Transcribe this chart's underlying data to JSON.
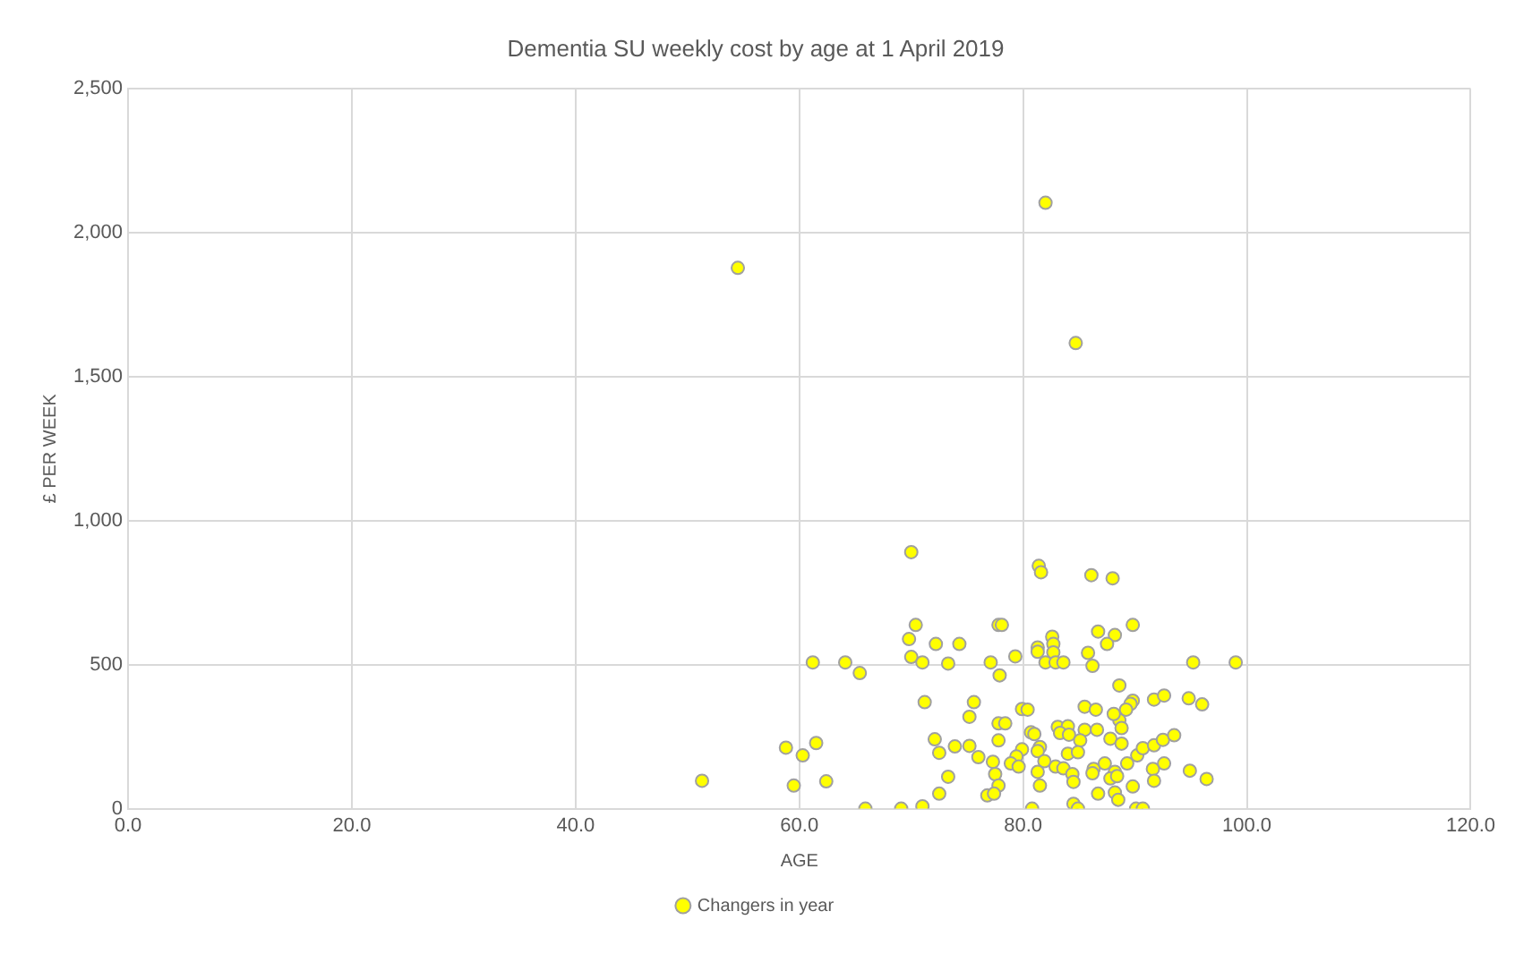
{
  "chart_data": {
    "type": "scatter",
    "title": "Dementia SU weekly cost by age at 1 April 2019",
    "xlabel": "AGE",
    "ylabel": "£ PER WEEK",
    "xlim": [
      0,
      120
    ],
    "xticks": [
      {
        "value": 0,
        "label": "0.0"
      },
      {
        "value": 20,
        "label": "20.0"
      },
      {
        "value": 40,
        "label": "40.0"
      },
      {
        "value": 60,
        "label": "60.0"
      },
      {
        "value": 80,
        "label": "80.0"
      },
      {
        "value": 100,
        "label": "100.0"
      },
      {
        "value": 120,
        "label": "120.0"
      }
    ],
    "ylim": [
      0,
      2500
    ],
    "yticks": [
      0,
      500,
      {
        "value": 1000,
        "label": "1,000"
      },
      {
        "value": 1500,
        "label": "1,500"
      },
      {
        "value": 2000,
        "label": "2,000"
      },
      {
        "value": 2500,
        "label": "2,500"
      }
    ],
    "grid": true,
    "legend": "bottom",
    "marker": "circle",
    "series": [
      {
        "name": "Changers in year",
        "color": "#ffff00",
        "x": [
          51.3,
          54.5,
          82,
          84.7,
          58.8,
          60.3,
          61.5,
          59.5,
          62.4,
          61.2,
          64.1,
          65.4,
          65.9,
          69.1,
          71.0,
          70.0,
          70.4,
          69.8,
          70.0,
          71.0,
          72.2,
          74.3,
          73.3,
          77.1,
          77.8,
          77.9,
          71.2,
          75.6,
          75.2,
          77.8,
          72.1,
          72.5,
          73.9,
          75.2,
          76.0,
          77.3,
          77.8,
          77.5,
          77.8,
          73.3,
          72.5,
          76.8,
          77.4,
          81.4,
          81.6,
          86.1,
          88.0,
          78.1,
          89.8,
          86.7,
          88.2,
          87.5,
          82.6,
          82.7,
          81.3,
          81.3,
          82.7,
          85.8,
          86.2,
          79.3,
          82.0,
          82.9,
          83.6,
          95.2,
          99.0,
          88.6,
          89.8,
          89.6,
          91.7,
          92.6,
          94.8,
          96.0,
          89.2,
          88.6,
          88.8,
          88.1,
          85.5,
          86.5,
          79.9,
          80.4,
          78.4,
          83.1,
          84.0,
          83.3,
          84.1,
          80.7,
          81.0,
          85.5,
          86.6,
          87.8,
          88.8,
          85.1,
          84.0,
          84.9,
          81.5,
          81.3,
          79.9,
          79.4,
          78.9,
          79.6,
          81.9,
          82.9,
          83.6,
          84.4,
          84.5,
          86.3,
          86.2,
          87.3,
          88.2,
          87.8,
          88.4,
          89.3,
          90.2,
          90.7,
          91.7,
          92.5,
          93.5,
          91.6,
          92.6,
          91.7,
          94.9,
          96.4,
          89.8,
          81.3,
          81.5,
          86.7,
          88.2,
          88.5,
          84.5,
          84.9,
          80.8,
          90.1,
          90.7
        ],
        "values": [
          97,
          1878,
          2104,
          1617,
          212,
          185,
          228,
          80,
          95,
          508,
          508,
          471,
          0,
          0,
          8,
          891,
          638,
          589,
          527,
          508,
          572,
          572,
          504,
          508,
          638,
          463,
          370,
          370,
          319,
          296,
          241,
          194,
          216,
          218,
          179,
          163,
          237,
          120,
          80,
          111,
          52,
          46,
          52,
          843,
          821,
          811,
          800,
          638,
          638,
          615,
          603,
          572,
          597,
          572,
          560,
          545,
          543,
          541,
          496,
          529,
          508,
          508,
          508,
          508,
          508,
          428,
          375,
          364,
          379,
          393,
          383,
          362,
          344,
          307,
          280,
          329,
          354,
          344,
          346,
          344,
          296,
          284,
          286,
          263,
          257,
          265,
          259,
          274,
          274,
          243,
          226,
          237,
          191,
          196,
          214,
          200,
          206,
          181,
          157,
          146,
          165,
          146,
          140,
          120,
          93,
          138,
          123,
          157,
          128,
          105,
          113,
          157,
          185,
          210,
          220,
          239,
          255,
          138,
          157,
          97,
          132,
          103,
          77,
          128,
          80,
          52,
          56,
          31,
          17,
          0,
          0,
          0,
          0
        ]
      }
    ]
  }
}
